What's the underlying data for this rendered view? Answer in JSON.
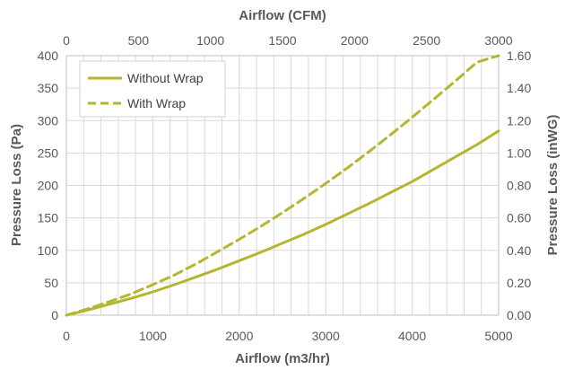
{
  "chart_data": {
    "type": "line",
    "x_label_bottom": "Airflow (m3/hr)",
    "x_label_top": "Airflow (CFM)",
    "y_label_left": "Pressure Loss (Pa)",
    "y_label_right": "Pressure Loss (inWG)",
    "x_range": [
      0,
      5000
    ],
    "x_ticks": [
      "0",
      "1000",
      "2000",
      "3000",
      "4000",
      "5000"
    ],
    "x_top_range": [
      0,
      3000
    ],
    "x_top_ticks": [
      "0",
      "500",
      "1000",
      "1500",
      "2000",
      "2500",
      "3000"
    ],
    "y_range": [
      0,
      400
    ],
    "y_ticks": [
      "0",
      "50",
      "100",
      "150",
      "200",
      "250",
      "300",
      "350",
      "400"
    ],
    "y_right_range": [
      0,
      1.6
    ],
    "y_right_ticks": [
      "0.00",
      "0.20",
      "0.40",
      "0.60",
      "0.80",
      "1.00",
      "1.20",
      "1.40",
      "1.60"
    ],
    "grid": true,
    "legend_position": "top-left",
    "series": [
      {
        "name": "Without Wrap",
        "style": "solid",
        "color": "#b5b52f",
        "x": [
          0,
          250,
          500,
          750,
          1000,
          1250,
          1500,
          1750,
          2000,
          2250,
          2500,
          2750,
          3000,
          3250,
          3500,
          3750,
          4000,
          4250,
          4500,
          4750,
          5000
        ],
        "y": [
          0,
          8,
          17,
          26,
          36,
          47,
          59,
          71,
          84,
          97,
          111,
          125,
          140,
          156,
          172,
          189,
          206,
          225,
          244,
          263,
          284
        ]
      },
      {
        "name": "With Wrap",
        "style": "dashed",
        "color": "#b5b52f",
        "x": [
          0,
          250,
          500,
          750,
          1000,
          1250,
          1500,
          1750,
          2000,
          2250,
          2500,
          2750,
          3000,
          3250,
          3500,
          3750,
          4000,
          4250,
          4500,
          4750,
          5000
        ],
        "y": [
          0,
          10,
          21,
          33,
          47,
          62,
          79,
          98,
          117,
          137,
          158,
          180,
          203,
          227,
          252,
          278,
          305,
          333,
          361,
          390,
          400
        ]
      }
    ]
  }
}
